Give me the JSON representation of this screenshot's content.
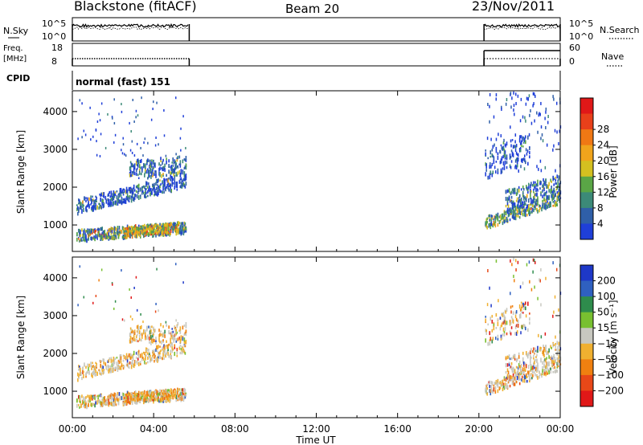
{
  "header": {
    "title": "Blackstone (fitACF)",
    "beam": "Beam 20",
    "date": "23/Nov/2011"
  },
  "panels": {
    "nsky": {
      "left_label": "N.Sky",
      "right_label": "N.Search",
      "left_ticks": [
        "10^5",
        "10^0"
      ],
      "right_ticks": [
        "10^5",
        "10^0"
      ]
    },
    "freq": {
      "left_label_1": "Freq.",
      "left_label_2": "[MHz]",
      "right_label": "Nave",
      "left_ticks": [
        "18",
        "8"
      ],
      "right_ticks": [
        "60",
        "0"
      ]
    },
    "cpid": {
      "label": "CPID",
      "value": "normal (fast) 151"
    }
  },
  "colors": {
    "power_scale": [
      "#1f3fd8",
      "#2f5fa8",
      "#3c8a78",
      "#5aa646",
      "#d4c020",
      "#f0a41c",
      "#f07814",
      "#e8401a",
      "#e01818"
    ],
    "velocity_scale": [
      "#1e38c8",
      "#2f60c0",
      "#2e8c4c",
      "#78c030",
      "#c8c8c0",
      "#f0b030",
      "#f08010",
      "#e84818",
      "#e01818"
    ]
  },
  "chart_data": [
    {
      "type": "heatmap",
      "title": "Power",
      "xlabel": "Time UT",
      "ylabel": "Slant Range [km]",
      "x_ticks": [
        "00:00",
        "04:00",
        "08:00",
        "12:00",
        "16:00",
        "20:00",
        "00:00"
      ],
      "y_ticks": [
        "1000",
        "2000",
        "3000",
        "4000"
      ],
      "ylim": [
        300,
        4550
      ],
      "colorbar": {
        "label": "Power [dB]",
        "ticks": [
          "4",
          "8",
          "12",
          "16",
          "20",
          "24",
          "28"
        ]
      },
      "data_windows_hours": [
        [
          0,
          5.75
        ],
        [
          20.25,
          24
        ]
      ],
      "features": [
        {
          "hours": [
            0.2,
            5.6
          ],
          "range_km": [
            550,
            1250
          ]
        },
        {
          "hours": [
            0.3,
            5.6
          ],
          "range_km": [
            1300,
            3300
          ]
        },
        {
          "hours": [
            20.3,
            24
          ],
          "range_km": [
            900,
            4500
          ]
        }
      ]
    },
    {
      "type": "heatmap",
      "title": "Velocity",
      "xlabel": "Time UT",
      "ylabel": "Slant Range [km]",
      "x_ticks": [
        "00:00",
        "04:00",
        "08:00",
        "12:00",
        "16:00",
        "20:00",
        "00:00"
      ],
      "y_ticks": [
        "1000",
        "2000",
        "3000",
        "4000"
      ],
      "ylim": [
        300,
        4550
      ],
      "colorbar": {
        "label": "Velocity [m s⁻¹]",
        "ticks": [
          "200",
          "100",
          "50",
          "15",
          "−15",
          "−50",
          "−100",
          "−200"
        ]
      },
      "data_windows_hours": [
        [
          0,
          5.75
        ],
        [
          20.25,
          24
        ]
      ]
    }
  ]
}
